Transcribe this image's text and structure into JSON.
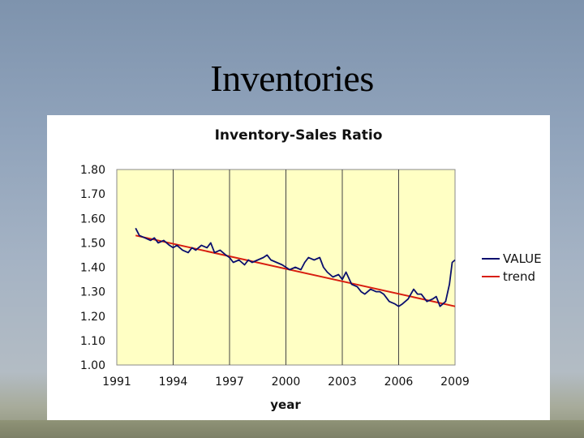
{
  "slide": {
    "title": "Inventories"
  },
  "chart_data": {
    "type": "line",
    "title": "Inventory-Sales Ratio",
    "xlabel": "year",
    "ylabel": "",
    "xlim": [
      1991,
      2009
    ],
    "ylim": [
      1.0,
      1.8
    ],
    "x_ticks": [
      1991,
      1994,
      1997,
      2000,
      2003,
      2006,
      2009
    ],
    "y_ticks": [
      1.0,
      1.1,
      1.2,
      1.3,
      1.4,
      1.5,
      1.6,
      1.7,
      1.8
    ],
    "y_tick_labels": [
      "1.00",
      "1.10",
      "1.20",
      "1.30",
      "1.40",
      "1.50",
      "1.60",
      "1.70",
      "1.80"
    ],
    "grid": {
      "vertical": true,
      "horizontal": false
    },
    "plot_background": "#ffffc4",
    "legend_position": "right",
    "series": [
      {
        "name": "VALUE",
        "color": "#0a0f6e",
        "x": [
          1992.0,
          1992.2,
          1992.5,
          1992.8,
          1993.0,
          1993.2,
          1993.5,
          1993.8,
          1994.0,
          1994.2,
          1994.5,
          1994.8,
          1995.0,
          1995.2,
          1995.5,
          1995.8,
          1996.0,
          1996.2,
          1996.5,
          1996.8,
          1997.0,
          1997.2,
          1997.5,
          1997.8,
          1998.0,
          1998.2,
          1998.5,
          1998.8,
          1999.0,
          1999.2,
          1999.5,
          1999.8,
          2000.0,
          2000.2,
          2000.5,
          2000.8,
          2001.0,
          2001.2,
          2001.5,
          2001.8,
          2002.0,
          2002.2,
          2002.5,
          2002.8,
          2003.0,
          2003.2,
          2003.5,
          2003.8,
          2004.0,
          2004.2,
          2004.5,
          2004.8,
          2005.0,
          2005.2,
          2005.5,
          2005.8,
          2006.0,
          2006.2,
          2006.5,
          2006.8,
          2007.0,
          2007.2,
          2007.5,
          2007.8,
          2008.0,
          2008.2,
          2008.5,
          2008.7,
          2008.85,
          2009.0
        ],
        "y": [
          1.56,
          1.53,
          1.52,
          1.51,
          1.52,
          1.5,
          1.51,
          1.49,
          1.48,
          1.49,
          1.47,
          1.46,
          1.48,
          1.47,
          1.49,
          1.48,
          1.5,
          1.46,
          1.47,
          1.45,
          1.44,
          1.42,
          1.43,
          1.41,
          1.43,
          1.42,
          1.43,
          1.44,
          1.45,
          1.43,
          1.42,
          1.41,
          1.4,
          1.39,
          1.4,
          1.39,
          1.42,
          1.44,
          1.43,
          1.44,
          1.4,
          1.38,
          1.36,
          1.37,
          1.35,
          1.38,
          1.33,
          1.32,
          1.3,
          1.29,
          1.31,
          1.3,
          1.3,
          1.29,
          1.26,
          1.25,
          1.24,
          1.25,
          1.27,
          1.31,
          1.29,
          1.29,
          1.26,
          1.27,
          1.28,
          1.24,
          1.26,
          1.33,
          1.42,
          1.43
        ]
      },
      {
        "name": "trend",
        "color": "#d81e10",
        "x": [
          1992.0,
          2009.0
        ],
        "y": [
          1.53,
          1.24
        ]
      }
    ]
  }
}
